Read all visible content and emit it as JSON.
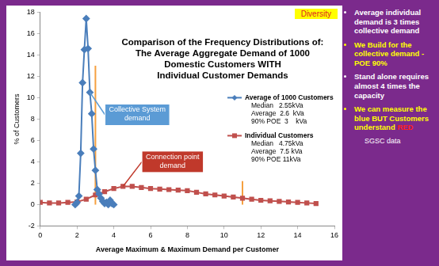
{
  "chart_data": {
    "type": "line",
    "title": [
      "Comparison of the Frequency Distributions of:",
      "The Average Aggregate Demand of 1000",
      "Domestic Customers WITH",
      "Individual Customer Demands"
    ],
    "x_label": "Average Maximum & Maximum Demand per Customer",
    "y_label": "% of Customers",
    "xlim": [
      0,
      16
    ],
    "xticks": [
      0,
      2,
      4,
      6,
      8,
      10,
      12,
      14,
      16
    ],
    "ylim": [
      -2,
      18
    ],
    "yticks": [
      -2,
      0,
      2,
      4,
      6,
      8,
      10,
      12,
      14,
      16,
      18
    ],
    "grid": false,
    "legend": "right",
    "series": [
      {
        "name": "Average of 1000 Customers",
        "color": "#4a7ebb",
        "marker": "diamond",
        "line_style": "solid",
        "stats": [
          "Median   2.55kVa",
          "Average  2.6  kVa",
          "90% POE  3    kVa"
        ],
        "x": [
          1.9,
          2.0,
          2.1,
          2.2,
          2.3,
          2.4,
          2.5,
          2.6,
          2.7,
          2.8,
          2.9,
          3.0,
          3.1,
          3.2,
          3.3,
          3.4,
          3.5,
          3.6,
          3.7,
          3.8,
          3.9,
          4.0
        ],
        "values": [
          0,
          0.2,
          0.8,
          4.8,
          11.4,
          14.5,
          17.4,
          14.6,
          10.5,
          8.5,
          5.2,
          3.2,
          1.4,
          1.0,
          0.6,
          0.3,
          0.1,
          0.2,
          0.0,
          0.4,
          0.1,
          0
        ]
      },
      {
        "name": "Individual Customers",
        "color": "#c0504d",
        "marker": "square",
        "line_style": "solid",
        "stats": [
          "Median   4.75kVa",
          "Average  7.5 kVa",
          "90% POE 11kVa"
        ],
        "x": [
          0,
          0.5,
          1,
          1.5,
          2,
          2.5,
          3,
          3.5,
          4,
          4.5,
          5,
          5.5,
          6,
          6.5,
          7,
          7.5,
          8,
          8.5,
          9,
          9.5,
          10,
          10.5,
          11,
          11.5,
          12,
          12.5,
          13,
          13.5,
          14,
          14.5,
          15
        ],
        "values": [
          0.2,
          0.15,
          0.15,
          0.2,
          0.25,
          0.5,
          0.9,
          1.2,
          1.5,
          1.7,
          1.7,
          1.6,
          1.5,
          1.45,
          1.4,
          1.35,
          1.3,
          1.15,
          1.0,
          0.9,
          0.8,
          0.7,
          0.6,
          0.5,
          0.4,
          0.35,
          0.3,
          0.25,
          0.2,
          0.15,
          0.1
        ]
      }
    ],
    "reference_lines": [
      {
        "x": 3,
        "y": [
          0,
          13
        ],
        "color": "#f5a040"
      },
      {
        "x": 11,
        "y": [
          0,
          2.2
        ],
        "color": "#f5a040"
      }
    ],
    "annotations": [
      {
        "text": "Collective System demand",
        "color": "#ffffff",
        "background": "#5b9bd5"
      },
      {
        "text": "Connection point demand",
        "color": "#ffffff",
        "background": "#c0392b"
      },
      {
        "text": "Diversity",
        "color": "#e02020",
        "background": "#ffff00"
      }
    ]
  },
  "slide": {
    "bullets": [
      [
        {
          "text": "Average individual demand is 3 times collective demand",
          "color": "#ffffff"
        }
      ],
      [
        {
          "text": "We Build for the collective demand  - POE 90%",
          "color": "#ffff00"
        }
      ],
      [
        {
          "text": "Stand alone requires almost 4 times the capacity",
          "color": "#ffffff"
        }
      ],
      [
        {
          "text": "We can measure the blue BUT Customers understand ",
          "color": "#ffff00"
        },
        {
          "text": "RED",
          "color": "#ff2020"
        }
      ]
    ],
    "source": "SGSC data"
  }
}
